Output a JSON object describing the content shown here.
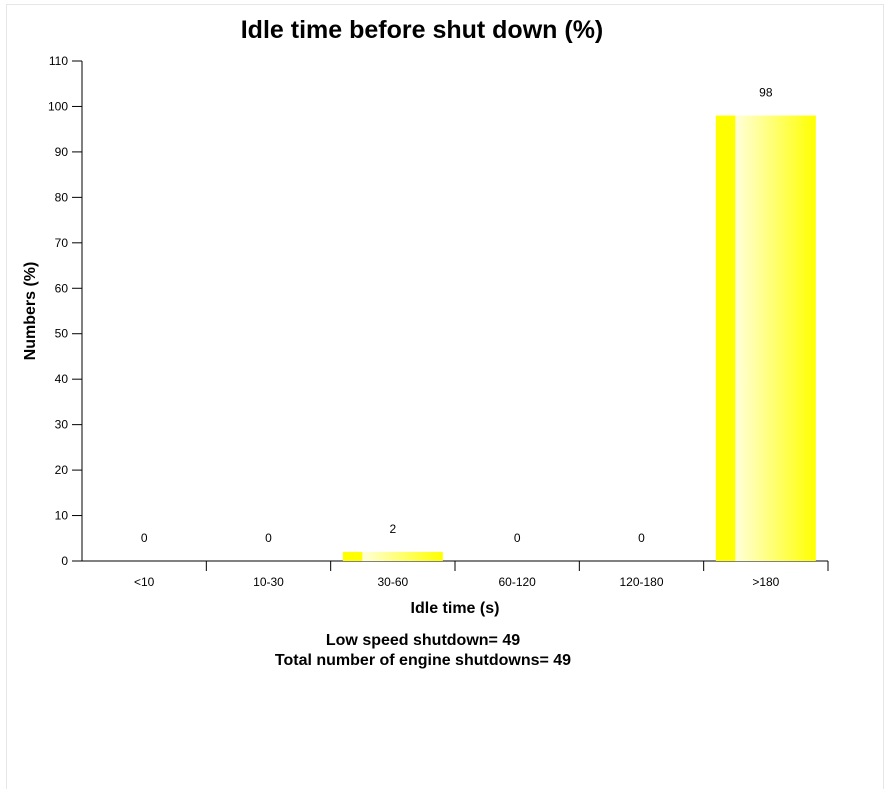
{
  "chart_data": {
    "type": "bar",
    "title": "Idle time before shut down (%)",
    "xlabel": "Idle time (s)",
    "ylabel": "Numbers (%)",
    "categories": [
      "<10",
      "10-30",
      "30-60",
      "60-120",
      "120-180",
      ">180"
    ],
    "values": [
      0,
      0,
      2,
      0,
      0,
      98
    ],
    "data_labels": [
      "0",
      "0",
      "2",
      "0",
      "0",
      "98"
    ],
    "ylim": [
      0,
      110
    ],
    "yticks": [
      0,
      10,
      20,
      30,
      40,
      50,
      60,
      70,
      80,
      90,
      100,
      110
    ],
    "grid": false,
    "legend": "none",
    "bar_color": "#ffff00",
    "bar_highlight_color": "#ffffe0"
  },
  "footnotes": {
    "line1": "Low speed shutdown= 49",
    "line2": "Total number of engine shutdowns= 49"
  }
}
